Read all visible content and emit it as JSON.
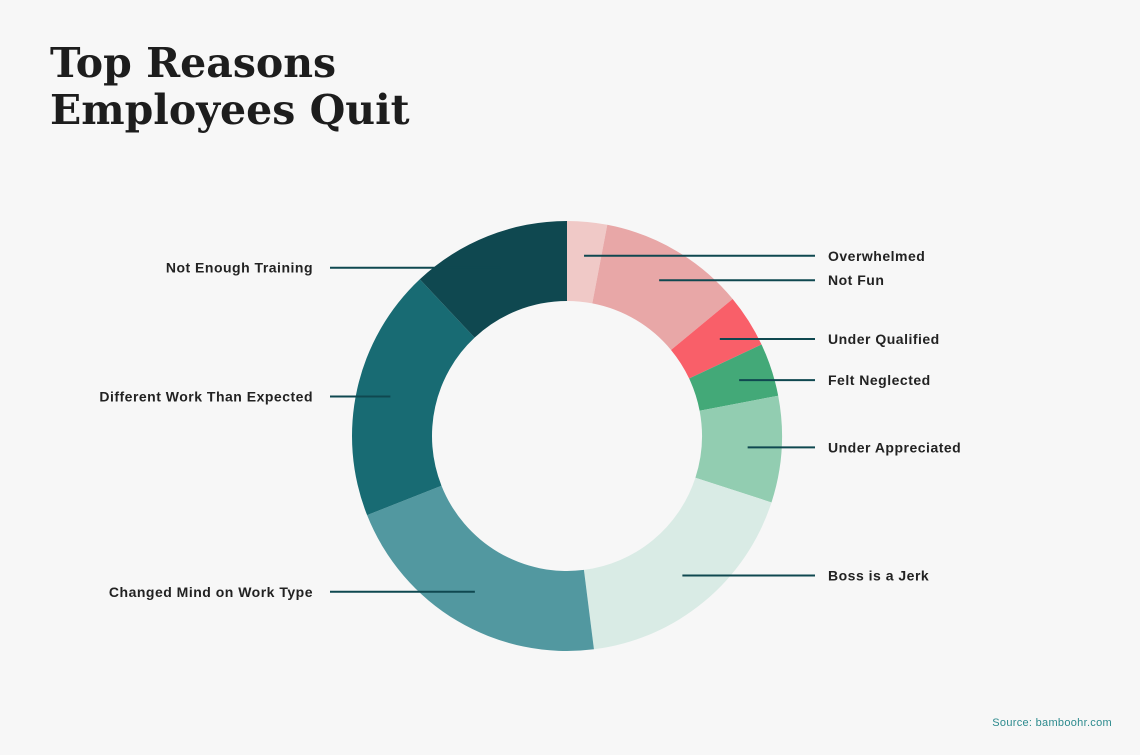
{
  "chart_data": {
    "type": "pie",
    "variant": "donut",
    "title_lines": [
      "Top Reasons",
      "Employees Quit"
    ],
    "order": "clockwise-from-top",
    "slices": [
      {
        "label": "Overwhelmed",
        "value": 3,
        "color": "#f0c9c7",
        "label_side": "right"
      },
      {
        "label": "Not Fun",
        "value": 11,
        "color": "#e8a7a7",
        "label_side": "right"
      },
      {
        "label": "Under Qualified",
        "value": 4,
        "color": "#f95f69",
        "label_side": "right"
      },
      {
        "label": "Felt Neglected",
        "value": 4,
        "color": "#43a978",
        "label_side": "right"
      },
      {
        "label": "Under Appreciated",
        "value": 8,
        "color": "#92cdb1",
        "label_side": "right"
      },
      {
        "label": "Boss is a Jerk",
        "value": 18,
        "color": "#d9ebe5",
        "label_side": "right"
      },
      {
        "label": "Changed Mind on Work Type",
        "value": 21,
        "color": "#5298a0",
        "label_side": "left"
      },
      {
        "label": "Different Work Than Expected",
        "value": 19,
        "color": "#186b73",
        "label_side": "left"
      },
      {
        "label": "Not Enough Training",
        "value": 12,
        "color": "#0f4850",
        "label_side": "left"
      }
    ]
  },
  "source": "Source: bamboohr.com",
  "colors": {
    "background": "#f7f7f7",
    "leader_line": "#0f4850",
    "title": "#1d1d1d",
    "source": "#2c8a8d"
  }
}
